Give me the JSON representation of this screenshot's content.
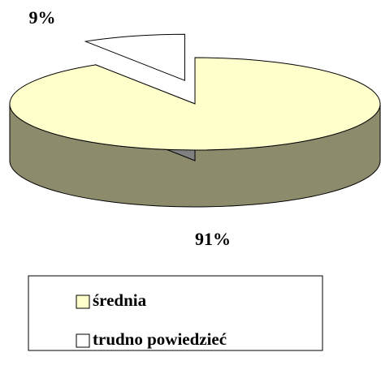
{
  "chart_data": {
    "type": "pie3d",
    "categories": [
      "średnia",
      "trudno powiedzieć"
    ],
    "values": [
      91,
      9
    ],
    "value_labels": [
      "91%",
      "9%"
    ],
    "colors": [
      "#FFFFCC",
      "#FFFFFF"
    ],
    "explode": [
      false,
      true
    ],
    "legend": "bottom"
  }
}
